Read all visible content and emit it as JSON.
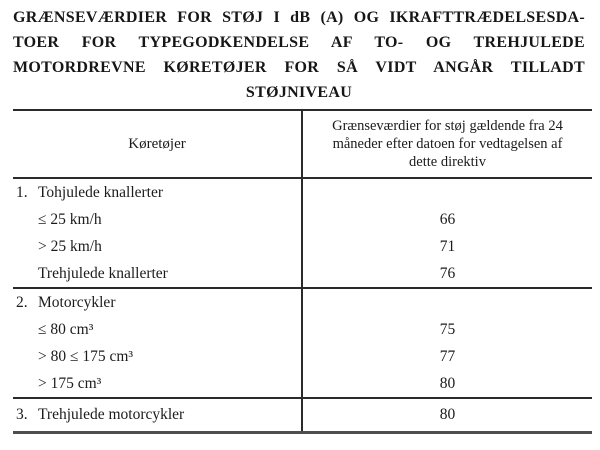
{
  "title": {
    "lines": [
      "GRÆNSEVÆRDIER FOR STØJ I dB (A) OG IKRAFTTRÆDELSESDA-",
      "TOER FOR TYPEGODKENDELSE AF TO- OG TREHJULEDE",
      "MOTORDREVNE KØRETØJER FOR SÅ VIDT ANGÅR TILLADT",
      "STØJNIVEAU"
    ]
  },
  "table": {
    "columns": {
      "vehicles": "Køretøjer",
      "limits": "Grænseværdier for støj gældende fra 24 måneder efter datoen for vedtagelsen af dette direktiv"
    },
    "sections": [
      {
        "rows": [
          {
            "num": "1.",
            "label": "Tohjulede knallerter",
            "value": ""
          },
          {
            "num": "",
            "label": "≤ 25 km/h",
            "value": "66"
          },
          {
            "num": "",
            "label": "> 25 km/h",
            "value": "71"
          },
          {
            "num": "",
            "label": "Trehjulede knallerter",
            "value": "76"
          }
        ]
      },
      {
        "rows": [
          {
            "num": "2.",
            "label": "Motorcykler",
            "value": ""
          },
          {
            "num": "",
            "label": "≤ 80 cm³",
            "value": "75"
          },
          {
            "num": "",
            "label": "> 80 ≤ 175 cm³",
            "value": "77"
          },
          {
            "num": "",
            "label": "> 175 cm³",
            "value": "80"
          }
        ]
      },
      {
        "rows": [
          {
            "num": "3.",
            "label": "Trehjulede motorcykler",
            "value": "80"
          }
        ]
      }
    ]
  },
  "colors": {
    "text": "#1b1b1b",
    "rule": "#2a2a2a",
    "background": "#ffffff"
  }
}
